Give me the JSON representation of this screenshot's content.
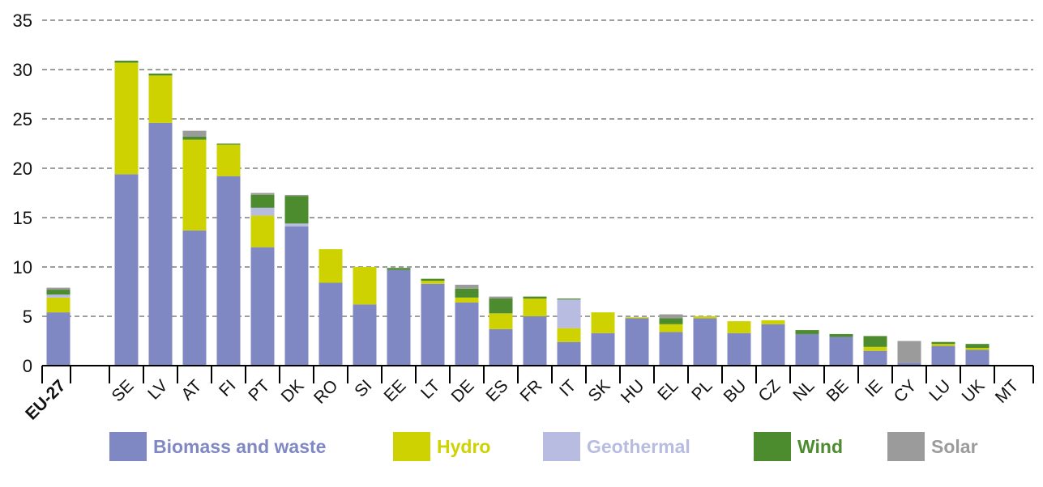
{
  "chart_data": {
    "type": "bar",
    "stacked": true,
    "title": "",
    "xlabel": "",
    "ylabel": "",
    "ylim": [
      0,
      35
    ],
    "yticks": [
      0,
      5,
      10,
      15,
      20,
      25,
      30,
      35
    ],
    "grid": true,
    "legend_position": "bottom",
    "categories": [
      "EU-27",
      "SE",
      "LV",
      "AT",
      "FI",
      "PT",
      "DK",
      "RO",
      "SI",
      "EE",
      "LT",
      "DE",
      "ES",
      "FR",
      "IT",
      "SK",
      "HU",
      "EL",
      "PL",
      "BU",
      "CZ",
      "NL",
      "BE",
      "IE",
      "CY",
      "LU",
      "UK",
      "MT"
    ],
    "series": [
      {
        "name": "Biomass and waste",
        "color": "#8088c3",
        "values": [
          5.4,
          19.4,
          24.6,
          13.7,
          19.2,
          12.0,
          14.1,
          8.4,
          6.2,
          9.7,
          8.3,
          6.4,
          3.7,
          5.0,
          2.4,
          3.3,
          4.8,
          3.4,
          4.8,
          3.3,
          4.2,
          3.2,
          2.9,
          1.5,
          0.3,
          2.0,
          1.6,
          0.0
        ]
      },
      {
        "name": "Hydro",
        "color": "#cdd200",
        "values": [
          1.5,
          11.3,
          4.8,
          9.2,
          3.2,
          3.2,
          0.0,
          3.4,
          3.8,
          0.0,
          0.3,
          0.5,
          1.6,
          1.8,
          1.4,
          2.1,
          0.1,
          0.8,
          0.2,
          1.2,
          0.4,
          0.0,
          0.0,
          0.4,
          0.0,
          0.2,
          0.2,
          0.0
        ]
      },
      {
        "name": "Geothermal",
        "color": "#b8bce0",
        "values": [
          0.3,
          0.0,
          0.0,
          0.0,
          0.0,
          0.8,
          0.3,
          0.0,
          0.0,
          0.0,
          0.0,
          0.0,
          0.0,
          0.0,
          2.9,
          0.0,
          0.0,
          0.0,
          0.0,
          0.0,
          0.0,
          0.0,
          0.0,
          0.0,
          0.0,
          0.0,
          0.0,
          0.0
        ]
      },
      {
        "name": "Wind",
        "color": "#4c8c2e",
        "values": [
          0.5,
          0.2,
          0.2,
          0.3,
          0.1,
          1.3,
          2.8,
          0.0,
          0.0,
          0.2,
          0.2,
          0.9,
          1.5,
          0.2,
          0.1,
          0.0,
          0.0,
          0.6,
          0.0,
          0.0,
          0.0,
          0.4,
          0.3,
          1.1,
          0.0,
          0.2,
          0.4,
          0.0
        ]
      },
      {
        "name": "Solar",
        "color": "#9b9b9b",
        "values": [
          0.2,
          0.0,
          0.0,
          0.6,
          0.0,
          0.2,
          0.1,
          0.0,
          0.0,
          0.0,
          0.0,
          0.4,
          0.2,
          0.0,
          0.0,
          0.0,
          0.0,
          0.4,
          0.0,
          0.0,
          0.0,
          0.0,
          0.0,
          0.0,
          2.2,
          0.0,
          0.0,
          0.0
        ]
      }
    ]
  }
}
